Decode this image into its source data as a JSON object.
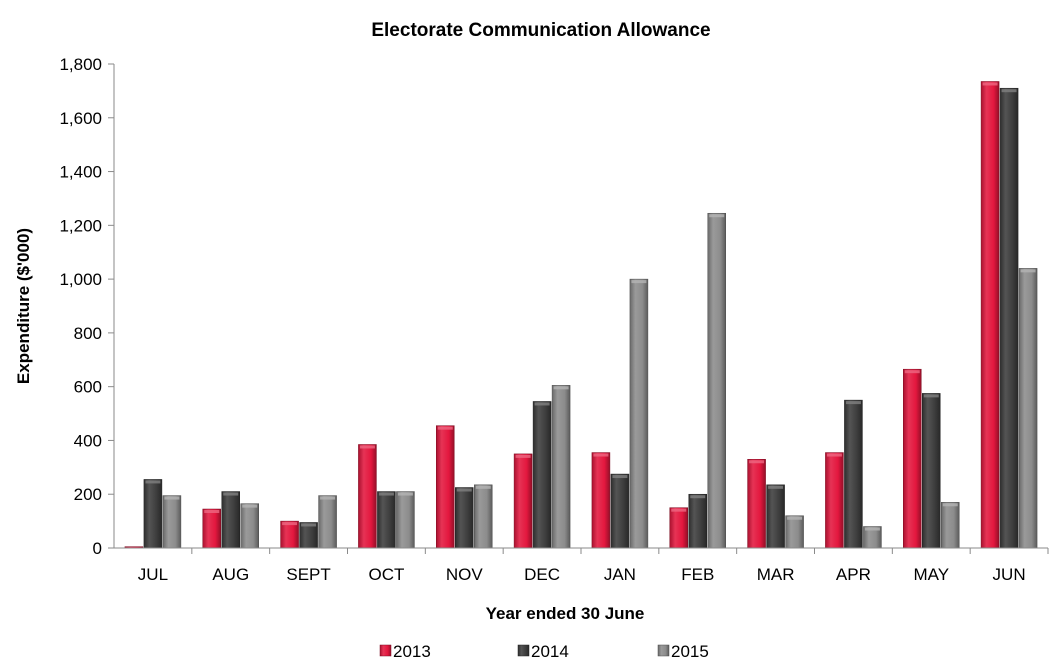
{
  "chart_data": {
    "type": "bar",
    "title": "Electorate Communication Allowance",
    "xlabel": "Year ended 30 June",
    "ylabel": "Expenditure ($'000)",
    "ylim": [
      0,
      1800
    ],
    "y_ticks": [
      0,
      200,
      400,
      600,
      800,
      1000,
      1200,
      1400,
      1600,
      1800
    ],
    "y_tick_labels": [
      "0",
      "200",
      "400",
      "600",
      "800",
      "1,000",
      "1,200",
      "1,400",
      "1,600",
      "1,800"
    ],
    "categories": [
      "JUL",
      "AUG",
      "SEPT",
      "OCT",
      "NOV",
      "DEC",
      "JAN",
      "FEB",
      "MAR",
      "APR",
      "MAY",
      "JUN"
    ],
    "series": [
      {
        "name": "2013",
        "color": "#e3173e",
        "values": [
          5,
          145,
          100,
          385,
          455,
          350,
          355,
          150,
          330,
          355,
          665,
          1735
        ]
      },
      {
        "name": "2014",
        "color": "#3d3d3d",
        "values": [
          255,
          210,
          95,
          210,
          225,
          545,
          275,
          200,
          235,
          550,
          575,
          1710
        ]
      },
      {
        "name": "2015",
        "color": "#8c8c8c",
        "values": [
          195,
          165,
          195,
          210,
          235,
          605,
          1000,
          1245,
          120,
          80,
          170,
          1040
        ]
      }
    ],
    "grid": false,
    "legend_position": "bottom"
  }
}
